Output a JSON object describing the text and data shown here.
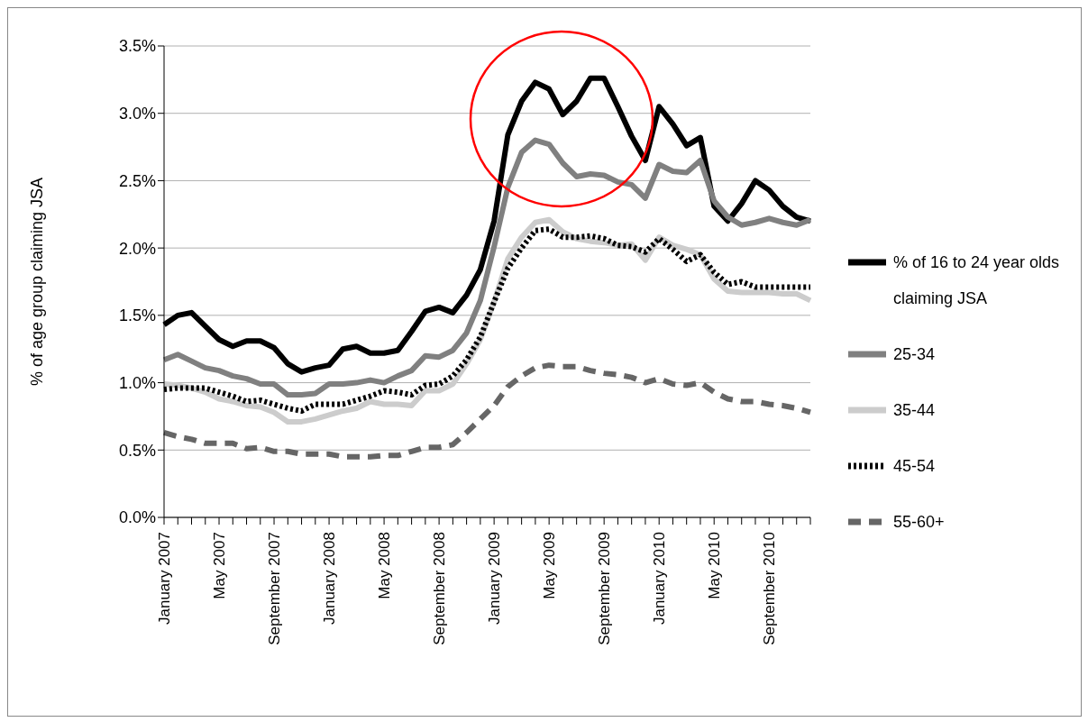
{
  "chart_data": {
    "type": "line",
    "ylabel": "% of age group claiming JSA",
    "categories": [
      "January 2007",
      null,
      null,
      null,
      "May 2007",
      null,
      null,
      null,
      "September 2007",
      null,
      null,
      null,
      "January 2008",
      null,
      null,
      null,
      "May 2008",
      null,
      null,
      null,
      "September 2008",
      null,
      null,
      null,
      "January 2009",
      null,
      null,
      null,
      "May 2009",
      null,
      null,
      null,
      "September 2009",
      null,
      null,
      null,
      "January 2010",
      null,
      null,
      null,
      "May 2010",
      null,
      null,
      null,
      "September 2010",
      null,
      null,
      null
    ],
    "series": [
      {
        "name": "% of 16 to 24 year olds claiming JSA",
        "color": "#000000",
        "line_style": "solid",
        "values": [
          1.43,
          1.5,
          1.52,
          1.42,
          1.32,
          1.27,
          1.31,
          1.31,
          1.26,
          1.14,
          1.08,
          1.11,
          1.13,
          1.25,
          1.27,
          1.22,
          1.22,
          1.24,
          1.38,
          1.53,
          1.56,
          1.52,
          1.65,
          1.84,
          2.2,
          2.84,
          3.09,
          3.23,
          3.18,
          2.99,
          3.09,
          3.26,
          3.26,
          3.05,
          2.83,
          2.65,
          3.05,
          2.92,
          2.76,
          2.82,
          2.31,
          2.2,
          2.33,
          2.5,
          2.43,
          2.31,
          2.23,
          2.2
        ]
      },
      {
        "name": "25-34",
        "color": "#808080",
        "line_style": "solid",
        "values": [
          1.17,
          1.21,
          1.16,
          1.11,
          1.09,
          1.05,
          1.03,
          0.99,
          0.99,
          0.91,
          0.91,
          0.92,
          0.99,
          0.99,
          1.0,
          1.02,
          1.0,
          1.05,
          1.09,
          1.2,
          1.19,
          1.24,
          1.37,
          1.61,
          2.01,
          2.45,
          2.71,
          2.8,
          2.77,
          2.63,
          2.53,
          2.55,
          2.54,
          2.49,
          2.47,
          2.37,
          2.62,
          2.57,
          2.56,
          2.65,
          2.35,
          2.23,
          2.17,
          2.19,
          2.22,
          2.19,
          2.17,
          2.21
        ]
      },
      {
        "name": "35-44",
        "color": "#cccccc",
        "line_style": "solid",
        "values": [
          0.99,
          0.98,
          0.96,
          0.93,
          0.88,
          0.86,
          0.83,
          0.82,
          0.78,
          0.71,
          0.71,
          0.73,
          0.76,
          0.79,
          0.81,
          0.86,
          0.84,
          0.84,
          0.83,
          0.94,
          0.94,
          0.99,
          1.14,
          1.32,
          1.6,
          1.92,
          2.08,
          2.19,
          2.21,
          2.12,
          2.07,
          2.05,
          2.04,
          2.02,
          2.03,
          1.91,
          2.08,
          2.02,
          1.99,
          1.95,
          1.77,
          1.68,
          1.67,
          1.67,
          1.67,
          1.66,
          1.66,
          1.61
        ]
      },
      {
        "name": "45-54",
        "color": "#000000",
        "line_style": "dotted",
        "values": [
          0.95,
          0.96,
          0.96,
          0.96,
          0.93,
          0.9,
          0.86,
          0.87,
          0.84,
          0.81,
          0.79,
          0.84,
          0.84,
          0.84,
          0.87,
          0.9,
          0.94,
          0.93,
          0.91,
          0.98,
          0.99,
          1.05,
          1.17,
          1.34,
          1.6,
          1.85,
          2.0,
          2.13,
          2.14,
          2.08,
          2.08,
          2.09,
          2.07,
          2.02,
          2.01,
          1.97,
          2.07,
          1.99,
          1.9,
          1.95,
          1.82,
          1.73,
          1.75,
          1.71,
          1.71,
          1.71,
          1.71,
          1.71
        ]
      },
      {
        "name": "55-60+",
        "color": "#666666",
        "line_style": "dashed",
        "values": [
          0.63,
          0.6,
          0.58,
          0.55,
          0.55,
          0.55,
          0.51,
          0.52,
          0.49,
          0.49,
          0.47,
          0.47,
          0.47,
          0.45,
          0.45,
          0.45,
          0.46,
          0.46,
          0.49,
          0.52,
          0.52,
          0.54,
          0.63,
          0.73,
          0.83,
          0.97,
          1.05,
          1.11,
          1.13,
          1.12,
          1.12,
          1.09,
          1.07,
          1.06,
          1.04,
          1.0,
          1.03,
          0.99,
          0.98,
          1.0,
          0.93,
          0.88,
          0.86,
          0.86,
          0.84,
          0.83,
          0.81,
          0.78
        ]
      }
    ],
    "ylim": [
      0,
      3.5
    ],
    "yticks": [
      {
        "value": 0,
        "label": "0.0%"
      },
      {
        "value": 0.5,
        "label": "0.5%"
      },
      {
        "value": 1,
        "label": "1.0%"
      },
      {
        "value": 1.5,
        "label": "1.5%"
      },
      {
        "value": 2,
        "label": "2.0%"
      },
      {
        "value": 2.5,
        "label": "2.5%"
      },
      {
        "value": 3,
        "label": "3.0%"
      },
      {
        "value": 3.5,
        "label": "3.5%"
      }
    ],
    "grid": "y",
    "legend": "right",
    "marker": "none"
  }
}
